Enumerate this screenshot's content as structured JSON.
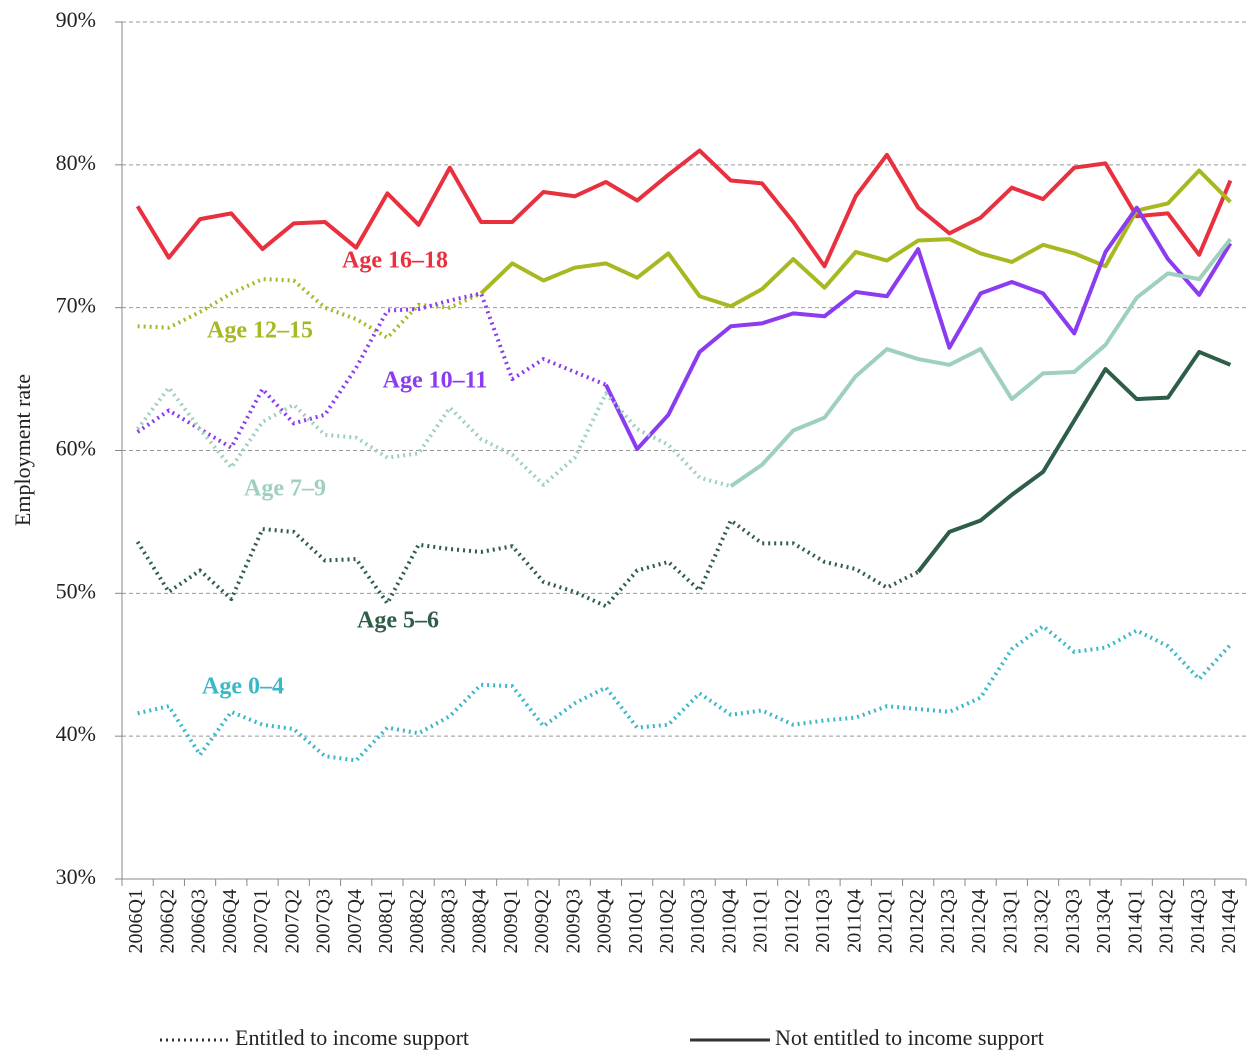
{
  "chart_data": {
    "type": "line",
    "y_label": "Employment rate",
    "categories": [
      "2006Q1",
      "2006Q2",
      "2006Q3",
      "2006Q4",
      "2007Q1",
      "2007Q2",
      "2007Q3",
      "2007Q4",
      "2008Q1",
      "2008Q2",
      "2008Q3",
      "2008Q4",
      "2009Q1",
      "2009Q2",
      "2009Q3",
      "2009Q4",
      "2010Q1",
      "2010Q2",
      "2010Q3",
      "2010Q4",
      "2011Q1",
      "2011Q2",
      "2011Q3",
      "2011Q4",
      "2012Q1",
      "2012Q2",
      "2012Q3",
      "2012Q4",
      "2013Q1",
      "2013Q2",
      "2013Q3",
      "2013Q4",
      "2014Q1",
      "2014Q2",
      "2014Q3",
      "2014Q4"
    ],
    "ylim": [
      30,
      90
    ],
    "yticks": [
      {
        "value": 30,
        "label": "30%"
      },
      {
        "value": 40,
        "label": "40%"
      },
      {
        "value": 50,
        "label": "50%"
      },
      {
        "value": 60,
        "label": "60%"
      },
      {
        "value": 70,
        "label": "70%"
      },
      {
        "value": 80,
        "label": "80%"
      },
      {
        "value": 90,
        "label": "90%"
      }
    ],
    "grid": true,
    "legend": [
      {
        "label": "Entitled to income support",
        "dash": "dotted"
      },
      {
        "label": "Not entitled to income support",
        "dash": "solid"
      }
    ],
    "series": [
      {
        "name": "Age 16–18",
        "color": "#e8303f",
        "not_entitled": [
          77.1,
          73.5,
          76.2,
          76.6,
          74.1,
          75.9,
          76.0,
          74.2,
          78.0,
          75.8,
          79.8,
          76.0,
          76.0,
          78.1,
          77.8,
          78.8,
          77.5,
          79.3,
          81.0,
          78.9,
          78.7,
          76.0,
          72.9,
          77.8,
          80.7,
          77.0,
          75.2,
          76.3,
          78.4,
          77.6,
          79.8,
          80.1,
          76.4,
          76.6,
          73.7,
          78.9
        ]
      },
      {
        "name": "Age 12–15",
        "color": "#a8b820",
        "entitled": [
          68.7,
          68.6,
          69.7,
          71.0,
          72.0,
          71.9,
          70.0,
          69.2,
          67.9,
          70.2,
          70.0,
          71.0,
          null,
          null,
          null,
          null,
          null,
          null,
          null,
          null,
          null,
          null,
          null,
          null,
          null,
          null,
          null,
          null,
          null,
          null,
          null,
          null,
          null,
          null,
          null,
          null
        ],
        "not_entitled": [
          null,
          null,
          null,
          null,
          null,
          null,
          null,
          null,
          null,
          null,
          null,
          71.0,
          73.1,
          71.9,
          72.8,
          73.1,
          72.1,
          73.8,
          70.8,
          70.1,
          71.3,
          73.4,
          71.4,
          73.9,
          73.3,
          74.7,
          74.8,
          73.8,
          73.2,
          74.4,
          73.8,
          72.9,
          76.8,
          77.3,
          79.6,
          77.4
        ]
      },
      {
        "name": "Age 10–11",
        "color": "#8b3bf0",
        "entitled": [
          61.3,
          62.8,
          61.5,
          60.2,
          64.3,
          61.9,
          62.5,
          65.8,
          69.8,
          69.9,
          70.5,
          71.0,
          65.0,
          66.4,
          65.5,
          64.6,
          null,
          null,
          null,
          null,
          null,
          null,
          null,
          null,
          null,
          null,
          null,
          null,
          null,
          null,
          null,
          null,
          null,
          null,
          null,
          null
        ],
        "not_entitled": [
          null,
          null,
          null,
          null,
          null,
          null,
          null,
          null,
          null,
          null,
          null,
          null,
          null,
          null,
          null,
          64.6,
          60.1,
          62.5,
          66.9,
          68.7,
          68.9,
          69.6,
          69.4,
          71.1,
          70.8,
          74.1,
          67.2,
          71.0,
          71.8,
          71.0,
          68.2,
          73.9,
          77.0,
          73.4,
          70.9,
          74.5
        ]
      },
      {
        "name": "Age 7–9",
        "color": "#9fd0be",
        "entitled": [
          61.5,
          64.4,
          61.5,
          58.8,
          62.0,
          63.2,
          61.1,
          60.9,
          59.5,
          59.8,
          63.0,
          60.8,
          59.7,
          57.6,
          59.5,
          64.0,
          61.5,
          60.4,
          58.1,
          57.5,
          null,
          null,
          null,
          null,
          null,
          null,
          null,
          null,
          null,
          null,
          null,
          null,
          null,
          null,
          null,
          null
        ],
        "not_entitled": [
          null,
          null,
          null,
          null,
          null,
          null,
          null,
          null,
          null,
          null,
          null,
          null,
          null,
          null,
          null,
          null,
          null,
          null,
          null,
          57.5,
          59.0,
          61.4,
          62.3,
          65.2,
          67.1,
          66.4,
          66.0,
          67.1,
          63.6,
          65.4,
          65.5,
          67.4,
          70.7,
          72.4,
          72.0,
          74.8
        ]
      },
      {
        "name": "Age 5–6",
        "color": "#2e5e48",
        "entitled": [
          53.6,
          50.1,
          51.6,
          49.6,
          54.5,
          54.3,
          52.3,
          52.4,
          49.3,
          53.4,
          53.1,
          52.9,
          53.3,
          50.8,
          50.1,
          49.1,
          51.6,
          52.2,
          50.2,
          55.1,
          53.5,
          53.5,
          52.2,
          51.7,
          50.4,
          51.5,
          null,
          null,
          null,
          null,
          null,
          null,
          null,
          null,
          null,
          null
        ],
        "not_entitled": [
          null,
          null,
          null,
          null,
          null,
          null,
          null,
          null,
          null,
          null,
          null,
          null,
          null,
          null,
          null,
          null,
          null,
          null,
          null,
          null,
          null,
          null,
          null,
          null,
          null,
          51.5,
          54.3,
          55.1,
          56.9,
          58.5,
          62.1,
          65.7,
          63.6,
          63.7,
          66.9,
          66.0
        ]
      },
      {
        "name": "Age 0–4",
        "color": "#3bb8c8",
        "entitled": [
          41.6,
          42.1,
          38.7,
          41.7,
          40.8,
          40.5,
          38.6,
          38.3,
          40.6,
          40.2,
          41.4,
          43.6,
          43.5,
          40.7,
          42.3,
          43.4,
          40.6,
          40.8,
          43.0,
          41.5,
          41.8,
          40.8,
          41.1,
          41.3,
          42.1,
          41.9,
          41.7,
          42.7,
          46.1,
          47.7,
          45.9,
          46.2,
          47.4,
          46.3,
          44.0,
          46.4
        ]
      }
    ]
  }
}
